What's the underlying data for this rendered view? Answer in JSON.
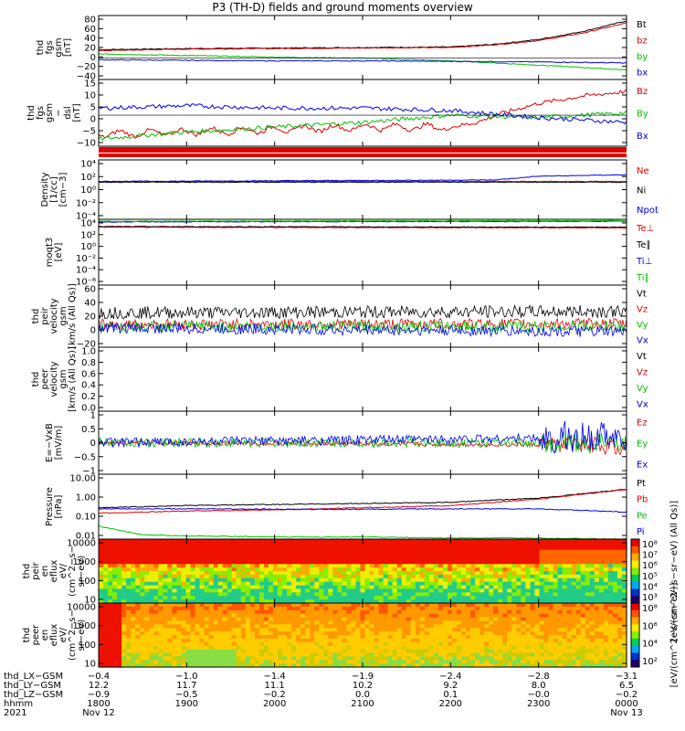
{
  "title": "P3 (TH-D) fields and ground moments overview",
  "colors": {
    "black": "#000000",
    "red": "#e00000",
    "green": "#00c000",
    "blue": "#0000ee"
  },
  "chart_data": {
    "type": "line",
    "x_ticks": [
      "1800",
      "1900",
      "2000",
      "2100",
      "2200",
      "2300",
      "0000"
    ],
    "x_dates": [
      "Nov 12",
      "",
      "",
      "",
      "",
      "",
      "Nov 13"
    ],
    "x_range_hours": [
      18,
      24
    ],
    "panels": [
      {
        "id": "fgs",
        "ylabel": [
          "thd",
          "fgs",
          "gsm",
          "[nT]"
        ],
        "ticks": [
          "80",
          "60",
          "40",
          "20",
          "0",
          "−20",
          "−40"
        ],
        "ylim": [
          -40,
          80
        ],
        "legend": [
          {
            "t": "Bt",
            "c": "black"
          },
          {
            "t": "bz",
            "c": "red"
          },
          {
            "t": "by",
            "c": "green"
          },
          {
            "t": "bx",
            "c": "blue"
          }
        ],
        "series": [
          {
            "name": "Bt",
            "c": "black",
            "x": [
              18,
              19,
              20,
              21,
              22,
              22.5,
              23,
              23.5,
              24
            ],
            "y": [
              16,
              18,
              19,
              20,
              21,
              26,
              35,
              50,
              70
            ]
          },
          {
            "name": "bz",
            "c": "red",
            "x": [
              18,
              19,
              20,
              21,
              22,
              22.5,
              23,
              23.5,
              24
            ],
            "y": [
              14,
              17,
              18,
              19,
              20,
              25,
              33,
              47,
              66
            ]
          },
          {
            "name": "by",
            "c": "green",
            "x": [
              18,
              19,
              20,
              21,
              22,
              23,
              24
            ],
            "y": [
              8,
              5,
              2,
              0,
              -5,
              -13,
              -22
            ]
          },
          {
            "name": "bx",
            "c": "blue",
            "x": [
              18,
              19,
              20,
              21,
              22,
              23,
              24
            ],
            "y": [
              -3,
              -4,
              -5,
              -5,
              -6,
              -7,
              -9
            ]
          }
        ]
      },
      {
        "id": "fgs2",
        "ylabel": [
          "thd",
          "fgs",
          "gsm",
          "−",
          "dsl",
          "[nT]"
        ],
        "ticks": [
          "15",
          "10",
          "5",
          "0",
          "−5",
          "−10"
        ],
        "ylim": [
          -13,
          15
        ],
        "legend": [
          {
            "t": "Bz",
            "c": "red"
          },
          {
            "t": "By",
            "c": "green"
          },
          {
            "t": "Bx",
            "c": "blue"
          }
        ],
        "series": [
          {
            "name": "Bz",
            "c": "red",
            "x": [
              18,
              19,
              20,
              21,
              22,
              22.3,
              22.6,
              23,
              23.5,
              24
            ],
            "y": [
              -8,
              -7,
              -6,
              -5,
              -5,
              -3,
              1,
              5,
              8,
              10
            ]
          },
          {
            "name": "By",
            "c": "green",
            "x": [
              18,
              19,
              20,
              21,
              22,
              23,
              24
            ],
            "y": [
              -10,
              -7,
              -5,
              -3,
              0,
              -1,
              1
            ]
          },
          {
            "name": "Bx",
            "c": "blue",
            "x": [
              18,
              19,
              20,
              21,
              22,
              23,
              24
            ],
            "y": [
              3,
              4,
              3,
              3,
              2,
              -1,
              -3
            ]
          }
        ]
      },
      {
        "id": "dens",
        "ylabel": [
          "Density",
          "[1/cc]",
          "[cm−3]"
        ],
        "ticks": [
          "10⁴",
          "10²",
          "10⁰",
          "10⁻²",
          "10⁻⁴"
        ],
        "ylim": [
          -4,
          4
        ],
        "log": true,
        "legend": [
          {
            "t": "Ne",
            "c": "red"
          },
          {
            "t": "Ni",
            "c": "black"
          },
          {
            "t": "Npot",
            "c": "blue"
          }
        ],
        "series": [
          {
            "name": "Ne",
            "c": "red",
            "x": [
              18,
              24
            ],
            "y": [
              1.1,
              1.1
            ]
          },
          {
            "name": "Ni",
            "c": "black",
            "x": [
              18,
              24
            ],
            "y": [
              1.0,
              1.0
            ]
          },
          {
            "name": "Npot",
            "c": "blue",
            "x": [
              18,
              22.5,
              23,
              24
            ],
            "y": [
              1.1,
              1.3,
              1.8,
              2.0
            ]
          }
        ]
      },
      {
        "id": "temp",
        "ylabel": [
          "moqt3",
          "[eV]"
        ],
        "ticks": [
          "10⁴",
          "10²",
          "10⁰",
          "10⁻²",
          "10⁻⁴",
          "10⁻⁶"
        ],
        "ylim": [
          -6,
          4
        ],
        "log": true,
        "legend": [
          {
            "t": "Te⊥",
            "c": "red"
          },
          {
            "t": "Te∥",
            "c": "black"
          },
          {
            "t": "Ti⊥",
            "c": "blue"
          },
          {
            "t": "Ti∥",
            "c": "green"
          }
        ],
        "series": [
          {
            "name": "Te⊥",
            "c": "red",
            "x": [
              18,
              24
            ],
            "y": [
              2.8,
              2.7
            ]
          },
          {
            "name": "Te∥",
            "c": "black",
            "x": [
              18,
              24
            ],
            "y": [
              2.9,
              2.8
            ]
          },
          {
            "name": "Ti⊥",
            "c": "blue",
            "x": [
              18,
              24
            ],
            "y": [
              3.6,
              3.7
            ]
          },
          {
            "name": "Ti∥",
            "c": "green",
            "x": [
              18,
              24
            ],
            "y": [
              3.7,
              3.8
            ]
          }
        ]
      },
      {
        "id": "peir",
        "ylabel": [
          "thd",
          "peir",
          "velocity",
          "gsm",
          "[km/s (All Qs)]"
        ],
        "ticks": [
          "60",
          "40",
          "20",
          "0",
          "−20"
        ],
        "ylim": [
          -30,
          60
        ],
        "legend": [
          {
            "t": "Vt",
            "c": "black"
          },
          {
            "t": "Vz",
            "c": "red"
          },
          {
            "t": "Vy",
            "c": "green"
          },
          {
            "t": "Vx",
            "c": "blue"
          }
        ],
        "series": [
          {
            "name": "Vt",
            "c": "black",
            "x": [
              18,
              24
            ],
            "y": [
              20,
              22
            ]
          },
          {
            "name": "Vz",
            "c": "red",
            "x": [
              18,
              24
            ],
            "y": [
              3,
              4
            ]
          },
          {
            "name": "Vy",
            "c": "green",
            "x": [
              18,
              24
            ],
            "y": [
              0,
              0
            ]
          },
          {
            "name": "Vx",
            "c": "blue",
            "x": [
              18,
              24
            ],
            "y": [
              -2,
              -8
            ]
          }
        ]
      },
      {
        "id": "peer",
        "ylabel": [
          "thd",
          "peer",
          "velocity",
          "gsm",
          "[km/s (All Qs)]"
        ],
        "ticks": [
          "1.0",
          "0.8",
          "0.6",
          "0.4",
          "0.2",
          "0.0"
        ],
        "ylim": [
          0,
          1
        ],
        "legend": [
          {
            "t": "Vt",
            "c": "black"
          },
          {
            "t": "Vz",
            "c": "red"
          },
          {
            "t": "Vy",
            "c": "green"
          },
          {
            "t": "Vx",
            "c": "blue"
          }
        ],
        "series": []
      },
      {
        "id": "efield",
        "ylabel": [
          "E=−VxB",
          "[mV/m]"
        ],
        "ticks": [
          "1",
          "0.5",
          "0",
          "−0.5",
          "−1"
        ],
        "ylim": [
          -1.2,
          1.2
        ],
        "legend": [
          {
            "t": "Ez",
            "c": "red"
          },
          {
            "t": "Ey",
            "c": "green"
          },
          {
            "t": "Ex",
            "c": "blue"
          }
        ],
        "series": [
          {
            "name": "Ez",
            "c": "red",
            "x": [
              18,
              24
            ],
            "y": [
              0,
              -0.1
            ]
          },
          {
            "name": "Ey",
            "c": "green",
            "x": [
              18,
              24
            ],
            "y": [
              0,
              0
            ]
          },
          {
            "name": "Ex",
            "c": "blue",
            "x": [
              18,
              24
            ],
            "y": [
              0,
              0.2
            ]
          }
        ]
      },
      {
        "id": "press",
        "ylabel": [
          "Pressure",
          "[nPa]"
        ],
        "ticks": [
          "10.00",
          "1.00",
          "0.10",
          "0.01"
        ],
        "ylim": [
          -2,
          1
        ],
        "log": true,
        "legend": [
          {
            "t": "Pt",
            "c": "black"
          },
          {
            "t": "Pb",
            "c": "red"
          },
          {
            "t": "Pe",
            "c": "green"
          },
          {
            "t": "Pi",
            "c": "blue"
          }
        ],
        "series": [
          {
            "name": "Pt",
            "c": "black",
            "x": [
              18,
              19,
              20,
              21,
              22,
              23,
              24
            ],
            "y": [
              -0.55,
              -0.45,
              -0.4,
              -0.35,
              -0.3,
              -0.1,
              0.3
            ]
          },
          {
            "name": "Pb",
            "c": "red",
            "x": [
              18,
              19,
              20,
              21,
              22,
              23,
              24
            ],
            "y": [
              -0.8,
              -0.7,
              -0.65,
              -0.55,
              -0.45,
              -0.15,
              0.3
            ]
          },
          {
            "name": "Pe",
            "c": "green",
            "x": [
              18,
              18.5,
              19,
              20,
              21,
              22,
              23,
              24
            ],
            "y": [
              -1.4,
              -1.8,
              -1.85,
              -1.9,
              -1.9,
              -1.95,
              -1.95,
              -2.0
            ]
          },
          {
            "name": "Pi",
            "c": "blue",
            "x": [
              18,
              19,
              20,
              21,
              22,
              23,
              24
            ],
            "y": [
              -0.6,
              -0.6,
              -0.62,
              -0.62,
              -0.6,
              -0.6,
              -0.75
            ]
          }
        ]
      },
      {
        "id": "peirspec",
        "ylabel": [
          "thd",
          "peir",
          "en",
          "eflux",
          "eV/",
          "(cm^2−s−",
          "sr−eV)"
        ],
        "ticks": [
          "10000",
          "1000",
          "100",
          "10"
        ],
        "ylim": [
          0.7,
          4.2
        ],
        "log": true,
        "cbar_ticks": [
          "10⁸",
          "10⁷",
          "10⁶",
          "10⁵",
          "10⁴",
          "10³"
        ],
        "cbar_label": "[eV/(cm^2−s−sr−eV) (All Qs)]"
      },
      {
        "id": "peerspec",
        "ylabel": [
          "thd",
          "peer",
          "en",
          "eflux",
          "eV/",
          "(cm^2−s−",
          "sr−eV)"
        ],
        "ticks": [
          "10000",
          "1000",
          "100",
          "10"
        ],
        "ylim": [
          0.7,
          4.2
        ],
        "log": true,
        "cbar_ticks": [
          "10⁸",
          "10⁶",
          "10⁴",
          "10²"
        ],
        "cbar_label": "[eV/(cm^2−s−sr−eV)]"
      }
    ],
    "orbit": [
      {
        "label": "thd_LX−GSM",
        "values": [
          "−0.4",
          "−1.0",
          "−1.4",
          "−1.9",
          "−2.4",
          "−2.8",
          "−3.1"
        ]
      },
      {
        "label": "thd_LY−GSM",
        "values": [
          "12.2",
          "11.7",
          "11.1",
          "10.2",
          "9.2",
          "8.0",
          "6.5"
        ]
      },
      {
        "label": "thd_LZ−GSM",
        "values": [
          "−0.9",
          "−0.5",
          "−0.2",
          "0.0",
          "0.1",
          "−0.0",
          "−0.2"
        ]
      },
      {
        "label": "hhmm",
        "values": [
          "1800",
          "1900",
          "2000",
          "2100",
          "2200",
          "2300",
          "0000"
        ]
      },
      {
        "label": "2021",
        "values": [
          "Nov 12",
          "",
          "",
          "",
          "",
          "",
          "Nov 13"
        ]
      }
    ]
  }
}
